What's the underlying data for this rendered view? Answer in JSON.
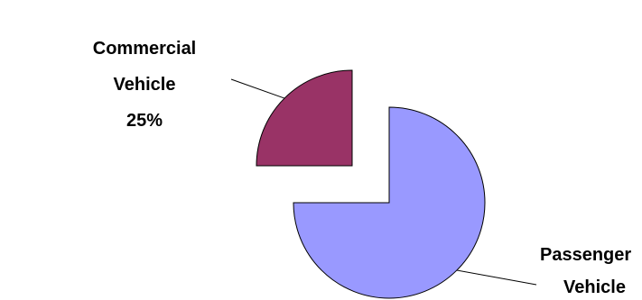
{
  "chart_data": {
    "type": "pie",
    "slices": [
      {
        "label_lines": [
          "Passenger",
          "Vehicle"
        ],
        "percent_label": "",
        "value": 75,
        "color": "#9999ff"
      },
      {
        "label_lines": [
          "Commercial",
          "Vehicle"
        ],
        "percent_label": "25%",
        "value": 25,
        "color": "#993366"
      }
    ],
    "exploded": true,
    "legend": "none",
    "start_angle_deg": 90,
    "direction": "clockwise"
  }
}
